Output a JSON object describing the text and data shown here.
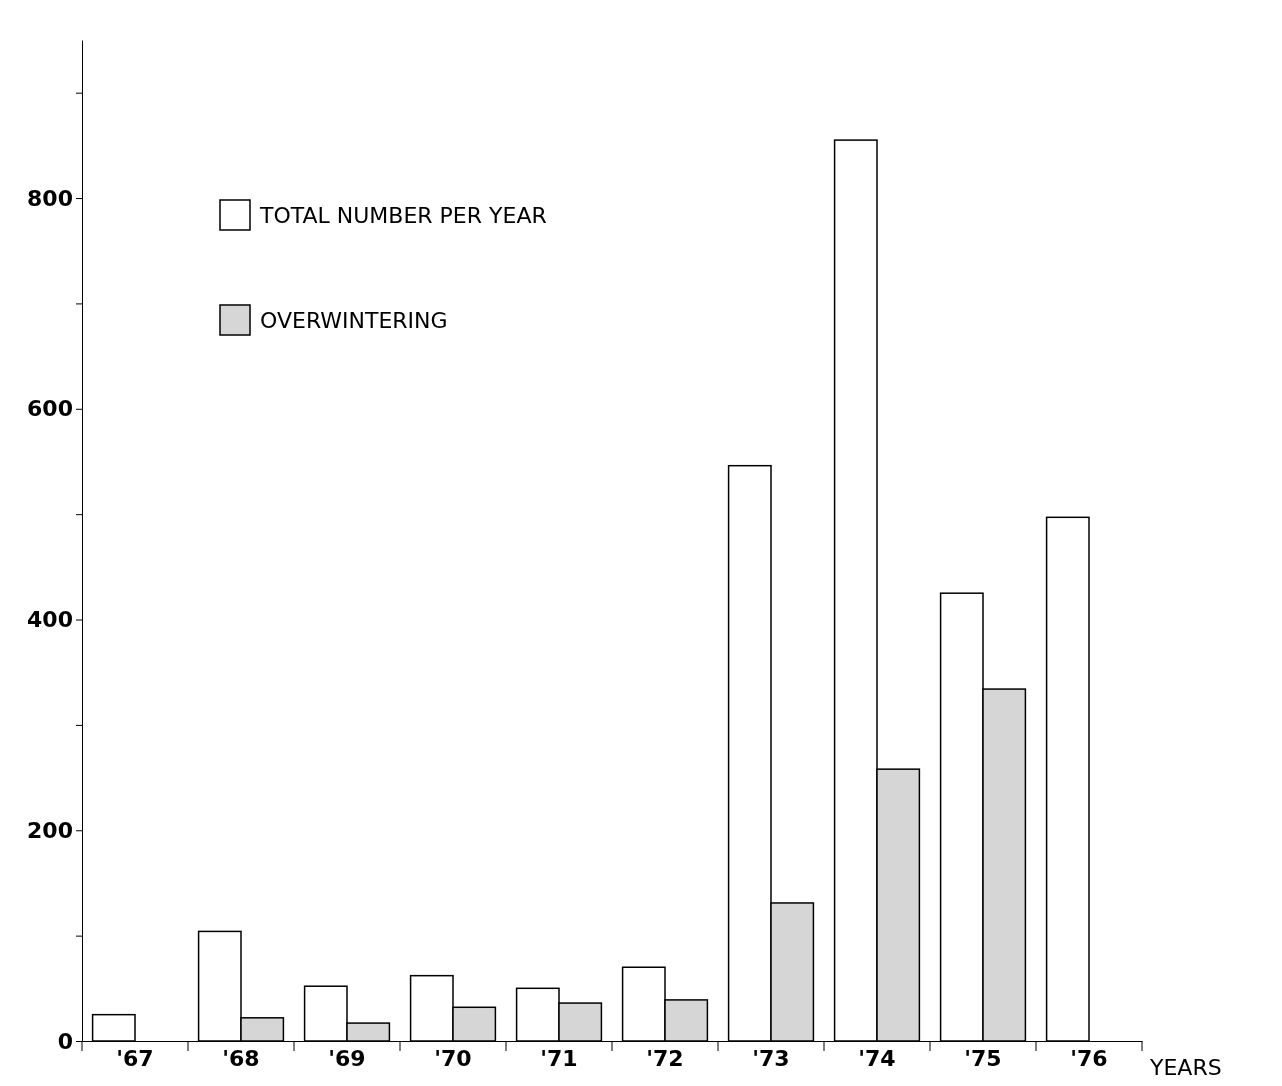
{
  "chart_data": {
    "type": "bar",
    "xlabel": "YEARS",
    "categories": [
      "'67",
      "'68",
      "'69",
      "'70",
      "'71",
      "'72",
      "'73",
      "'74",
      "'75",
      "'76"
    ],
    "series": [
      {
        "name": "TOTAL NUMBER PER YEAR",
        "color": "#ffffff",
        "values": [
          25,
          104,
          52,
          62,
          50,
          70,
          546,
          855,
          425,
          497
        ]
      },
      {
        "name": "OVERWINTERING",
        "color": "#d6d6d6",
        "values": [
          null,
          22,
          17,
          32,
          36,
          39,
          131,
          258,
          334,
          null
        ]
      }
    ],
    "ylim": [
      0,
      950
    ],
    "yticks": [
      0,
      {
        "value": 100,
        "label": null
      },
      200,
      {
        "value": 300,
        "label": null
      },
      400,
      {
        "value": 500,
        "label": null
      },
      600,
      {
        "value": 700,
        "label": null
      },
      800,
      {
        "value": 900,
        "label": null
      }
    ],
    "grid": false,
    "legend": "top left"
  }
}
